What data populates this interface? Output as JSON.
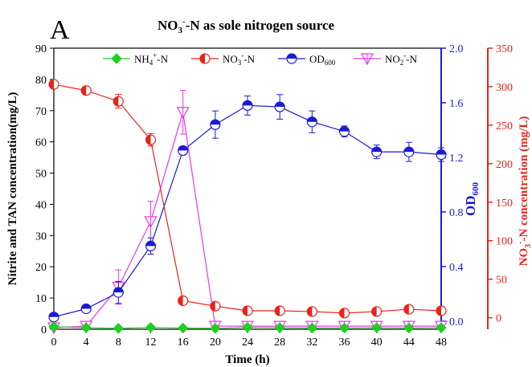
{
  "panel_label": "A",
  "chart_data": {
    "type": "line",
    "title": "NO3--N as sole nitrogen source",
    "title_main": "NO",
    "title_sub": "3",
    "title_sup": "-",
    "title_rest": "-N as sole nitrogen source",
    "xlabel": "Time (h)",
    "ylabel_left": "Nitrite and TAN concentration(mg/L)",
    "ylabel_right1_main": "OD",
    "ylabel_right1_sub": "600",
    "ylabel_right2_main": "NO",
    "ylabel_right2_sub": "3",
    "ylabel_right2_sup": "-",
    "ylabel_right2_rest": "-N concentration (mg/L)",
    "x": [
      0,
      4,
      8,
      12,
      16,
      20,
      24,
      28,
      32,
      36,
      40,
      44,
      48
    ],
    "xlim": [
      0,
      48
    ],
    "xticks": [
      "0",
      "4",
      "8",
      "12",
      "16",
      "20",
      "24",
      "28",
      "32",
      "36",
      "40",
      "44",
      "48"
    ],
    "ylim_left": [
      0,
      90
    ],
    "yticks_left": [
      "0",
      "10",
      "20",
      "30",
      "40",
      "50",
      "60",
      "70",
      "80",
      "90"
    ],
    "ylim_od": [
      -0.06,
      2.0
    ],
    "yticks_od": [
      "0.0",
      "0.4",
      "0.8",
      "1.2",
      "1.6",
      "2.0"
    ],
    "ylim_no3": [
      -15,
      350
    ],
    "yticks_no3": [
      "0",
      "50",
      "100",
      "150",
      "200",
      "250",
      "300",
      "350"
    ],
    "legend_position": "top",
    "series": [
      {
        "name": "NH4+-N",
        "label_main": "NH",
        "label_sub": "4",
        "label_sup": "+",
        "label_rest": "-N",
        "axis": "left",
        "color": "#1fd01f",
        "marker": "diamond",
        "values": [
          0.8,
          0.5,
          0.3,
          0.6,
          0.4,
          0.3,
          0.6,
          0.5,
          0.4,
          0.4,
          0.5,
          0.4,
          0.5
        ],
        "errors": [
          0.5,
          0.4,
          0.3,
          0.3,
          0.3,
          0.3,
          0.3,
          0.3,
          0.3,
          0.3,
          0.3,
          0.3,
          0.3
        ]
      },
      {
        "name": "NO3--N",
        "label_main": "NO",
        "label_sub": "3",
        "label_sup": "-",
        "label_rest": "-N",
        "axis": "right_no3",
        "color": "#e8241a",
        "marker": "half-circle-left",
        "values": [
          303,
          295,
          281,
          231,
          22,
          15,
          9,
          9,
          8,
          6,
          8,
          11,
          9
        ],
        "errors": [
          3,
          5,
          9,
          8,
          2,
          4,
          4,
          4,
          4,
          3,
          4,
          5,
          4
        ]
      },
      {
        "name": "OD600",
        "label_main": "OD",
        "label_sub": "600",
        "axis": "right_od",
        "color": "#1a1ad8",
        "marker": "half-circle-top",
        "values": [
          0.03,
          0.09,
          0.21,
          0.55,
          1.25,
          1.44,
          1.58,
          1.57,
          1.46,
          1.39,
          1.24,
          1.24,
          1.22
        ],
        "errors": [
          0.01,
          0.02,
          0.08,
          0.06,
          0.03,
          0.1,
          0.07,
          0.09,
          0.08,
          0.04,
          0.05,
          0.07,
          0.05
        ]
      },
      {
        "name": "NO2--N",
        "label_main": "NO",
        "label_sub": "2",
        "label_sup": "-",
        "label_rest": "-N",
        "axis": "left",
        "color": "#e838e8",
        "marker": "triangle-down",
        "values": [
          0.5,
          1.0,
          13.5,
          34.5,
          69.5,
          1.0,
          1.0,
          1.0,
          1.0,
          1.0,
          1.0,
          1.0,
          1.0
        ],
        "errors": [
          0.5,
          0.5,
          5.5,
          6.5,
          7.0,
          0.5,
          0.5,
          0.5,
          0.5,
          0.5,
          0.5,
          0.5,
          0.5
        ]
      }
    ]
  }
}
